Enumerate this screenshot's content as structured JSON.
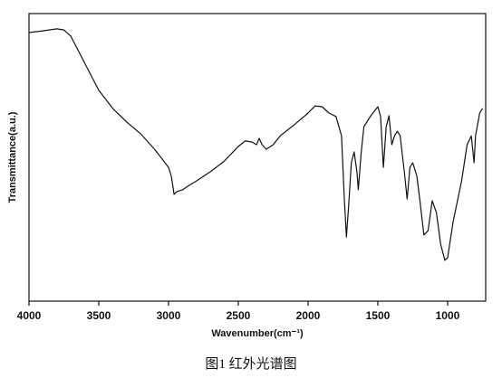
{
  "chart_data": {
    "type": "line",
    "caption": "图1 红外光谱图",
    "x_label": "Wavenumber(cm⁻¹)",
    "y_label": "Transmittance(a.u.)",
    "xlim": [
      4000,
      727
    ],
    "ylim": [
      0,
      100
    ],
    "xticks": [
      4000,
      3500,
      3000,
      2500,
      2000,
      1500,
      1000
    ],
    "x": [
      4000,
      3900,
      3800,
      3750,
      3700,
      3600,
      3500,
      3400,
      3300,
      3200,
      3100,
      3050,
      3000,
      2980,
      2960,
      2940,
      2900,
      2850,
      2800,
      2700,
      2600,
      2500,
      2450,
      2400,
      2370,
      2350,
      2330,
      2300,
      2250,
      2200,
      2100,
      2000,
      1950,
      1900,
      1850,
      1800,
      1760,
      1740,
      1725,
      1710,
      1690,
      1670,
      1650,
      1640,
      1620,
      1600,
      1550,
      1500,
      1480,
      1460,
      1440,
      1420,
      1400,
      1380,
      1360,
      1340,
      1310,
      1290,
      1270,
      1250,
      1220,
      1200,
      1170,
      1140,
      1110,
      1080,
      1050,
      1020,
      1000,
      960,
      900,
      860,
      830,
      810,
      800,
      770,
      750
    ],
    "series": [
      {
        "color": "#111111",
        "values": [
          93.4,
          94.0,
          94.7,
          94.3,
          92.1,
          82.7,
          73.3,
          67.0,
          62.3,
          58.2,
          52.8,
          49.7,
          46.5,
          43.4,
          37.1,
          38.1,
          38.7,
          40.3,
          41.8,
          45.0,
          48.7,
          53.8,
          55.7,
          55.3,
          54.4,
          56.6,
          54.4,
          52.8,
          54.4,
          57.5,
          61.3,
          65.4,
          67.9,
          67.6,
          65.4,
          64.2,
          57.5,
          35.5,
          22.3,
          32.4,
          48.1,
          51.9,
          45.0,
          38.7,
          51.3,
          60.7,
          64.5,
          67.6,
          64.2,
          46.5,
          60.7,
          64.5,
          54.4,
          57.5,
          59.1,
          57.5,
          45.0,
          35.5,
          46.5,
          48.1,
          43.4,
          35.5,
          23.0,
          24.5,
          34.9,
          30.8,
          19.8,
          14.2,
          15.1,
          27.7,
          41.8,
          54.4,
          57.5,
          48.1,
          57.5,
          65.4,
          67.0
        ]
      }
    ]
  }
}
